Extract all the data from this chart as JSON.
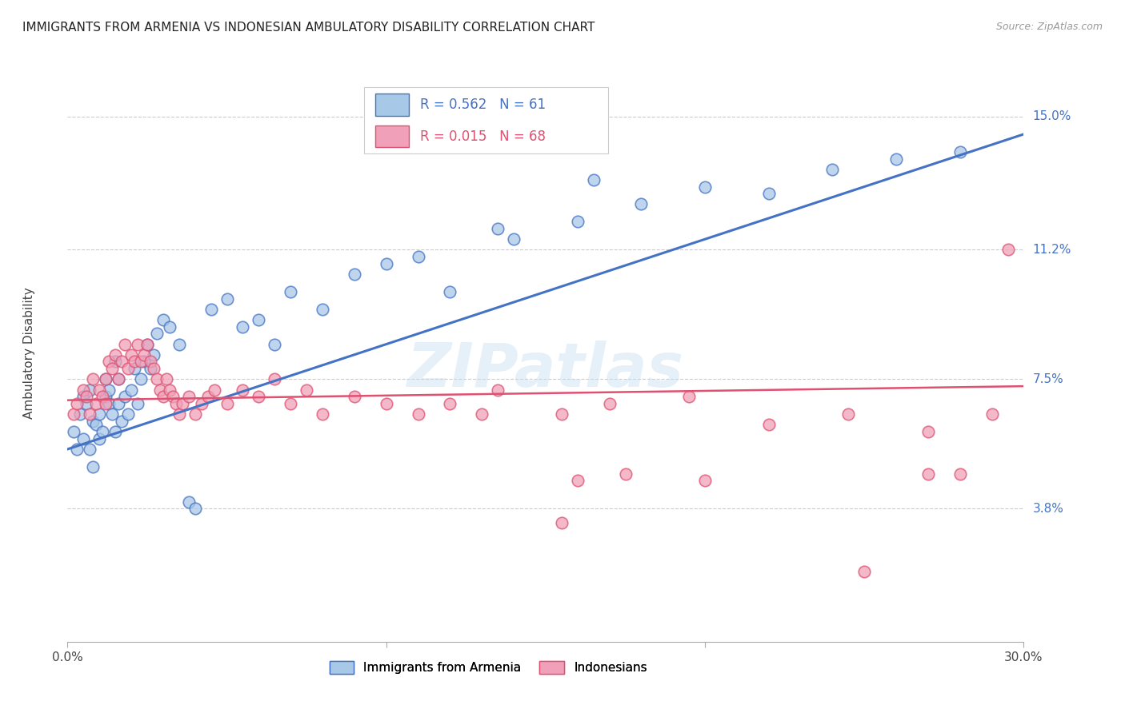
{
  "title": "IMMIGRANTS FROM ARMENIA VS INDONESIAN AMBULATORY DISABILITY CORRELATION CHART",
  "source": "Source: ZipAtlas.com",
  "ylabel": "Ambulatory Disability",
  "yticks": [
    0.038,
    0.075,
    0.112,
    0.15
  ],
  "ytick_labels": [
    "3.8%",
    "7.5%",
    "11.2%",
    "15.0%"
  ],
  "xlim": [
    0.0,
    0.3
  ],
  "ylim": [
    0.0,
    0.165
  ],
  "legend1_label": "Immigrants from Armenia",
  "legend2_label": "Indonesians",
  "R1": "0.562",
  "N1": "61",
  "R2": "0.015",
  "N2": "68",
  "color_blue": "#A8C8E8",
  "color_pink": "#F0A0B8",
  "color_blue_line": "#4472C4",
  "color_pink_line": "#E05070",
  "watermark": "ZIPatlas",
  "armenia_x": [
    0.002,
    0.003,
    0.004,
    0.005,
    0.005,
    0.006,
    0.007,
    0.007,
    0.008,
    0.008,
    0.009,
    0.01,
    0.01,
    0.011,
    0.012,
    0.012,
    0.013,
    0.013,
    0.014,
    0.015,
    0.015,
    0.016,
    0.016,
    0.017,
    0.018,
    0.019,
    0.02,
    0.021,
    0.022,
    0.023,
    0.024,
    0.025,
    0.026,
    0.027,
    0.028,
    0.03,
    0.032,
    0.035,
    0.038,
    0.04,
    0.045,
    0.05,
    0.055,
    0.06,
    0.065,
    0.07,
    0.08,
    0.09,
    0.1,
    0.11,
    0.12,
    0.14,
    0.16,
    0.18,
    0.2,
    0.22,
    0.24,
    0.26,
    0.28,
    0.165,
    0.135
  ],
  "armenia_y": [
    0.06,
    0.055,
    0.065,
    0.058,
    0.07,
    0.068,
    0.055,
    0.072,
    0.05,
    0.063,
    0.062,
    0.058,
    0.065,
    0.06,
    0.07,
    0.075,
    0.068,
    0.072,
    0.065,
    0.06,
    0.08,
    0.068,
    0.075,
    0.063,
    0.07,
    0.065,
    0.072,
    0.078,
    0.068,
    0.075,
    0.08,
    0.085,
    0.078,
    0.082,
    0.088,
    0.092,
    0.09,
    0.085,
    0.04,
    0.038,
    0.095,
    0.098,
    0.09,
    0.092,
    0.085,
    0.1,
    0.095,
    0.105,
    0.108,
    0.11,
    0.1,
    0.115,
    0.12,
    0.125,
    0.13,
    0.128,
    0.135,
    0.138,
    0.14,
    0.132,
    0.118
  ],
  "indonesia_x": [
    0.002,
    0.003,
    0.005,
    0.006,
    0.007,
    0.008,
    0.009,
    0.01,
    0.011,
    0.012,
    0.012,
    0.013,
    0.014,
    0.015,
    0.016,
    0.017,
    0.018,
    0.019,
    0.02,
    0.021,
    0.022,
    0.023,
    0.024,
    0.025,
    0.026,
    0.027,
    0.028,
    0.029,
    0.03,
    0.031,
    0.032,
    0.033,
    0.034,
    0.035,
    0.036,
    0.038,
    0.04,
    0.042,
    0.044,
    0.046,
    0.05,
    0.055,
    0.06,
    0.065,
    0.07,
    0.075,
    0.08,
    0.09,
    0.1,
    0.11,
    0.12,
    0.13,
    0.135,
    0.155,
    0.17,
    0.195,
    0.22,
    0.245,
    0.27,
    0.29,
    0.175,
    0.2,
    0.28,
    0.155,
    0.25,
    0.27,
    0.295,
    0.16
  ],
  "indonesia_y": [
    0.065,
    0.068,
    0.072,
    0.07,
    0.065,
    0.075,
    0.068,
    0.072,
    0.07,
    0.075,
    0.068,
    0.08,
    0.078,
    0.082,
    0.075,
    0.08,
    0.085,
    0.078,
    0.082,
    0.08,
    0.085,
    0.08,
    0.082,
    0.085,
    0.08,
    0.078,
    0.075,
    0.072,
    0.07,
    0.075,
    0.072,
    0.07,
    0.068,
    0.065,
    0.068,
    0.07,
    0.065,
    0.068,
    0.07,
    0.072,
    0.068,
    0.072,
    0.07,
    0.075,
    0.068,
    0.072,
    0.065,
    0.07,
    0.068,
    0.065,
    0.068,
    0.065,
    0.072,
    0.065,
    0.068,
    0.07,
    0.062,
    0.065,
    0.06,
    0.065,
    0.048,
    0.046,
    0.048,
    0.034,
    0.02,
    0.048,
    0.112,
    0.046
  ]
}
